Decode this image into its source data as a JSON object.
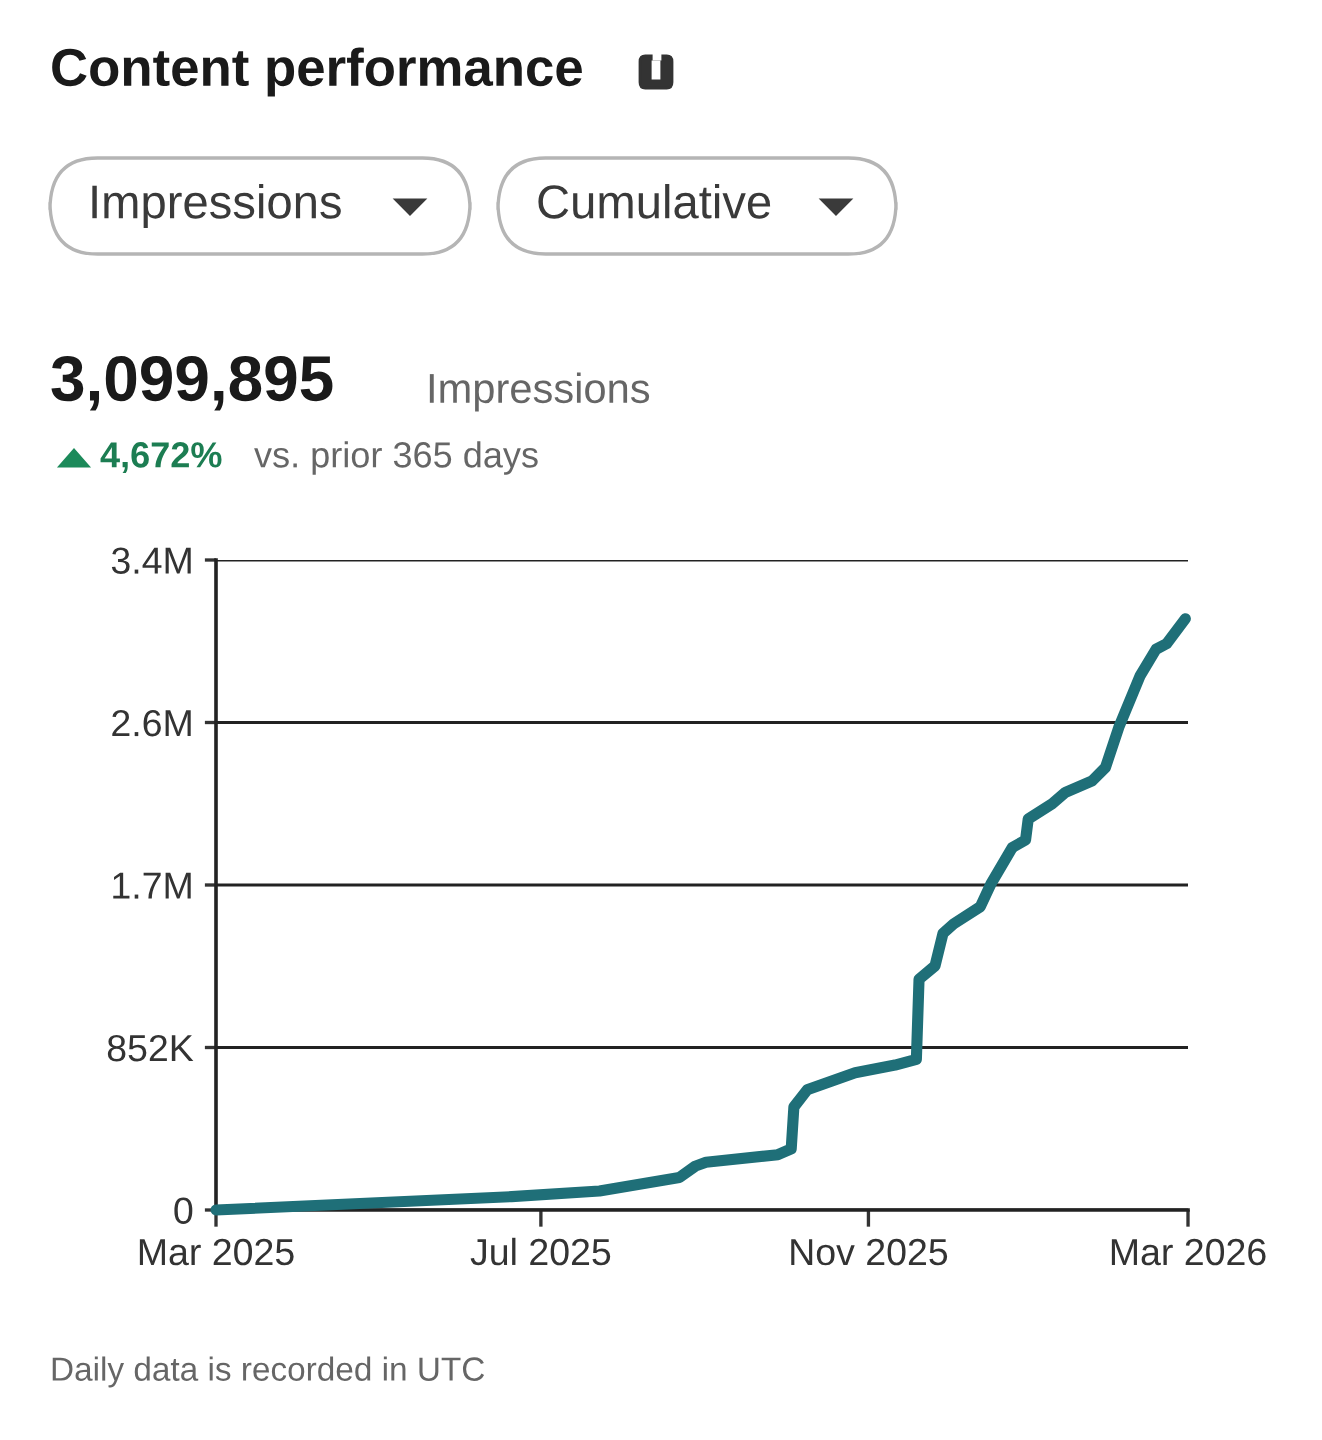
{
  "chart_data": {
    "type": "line",
    "title": "Content performance",
    "annotations": [
      "Impressions",
      "Cumulative",
      "3,099,895",
      "Impressions",
      "4,672%",
      "vs. prior 365 days",
      "Daily data is recorded in UTC"
    ],
    "x": [
      "2025-03-01",
      "2025-06-20",
      "2025-07-23",
      "2025-08-22",
      "2025-08-28",
      "2025-09-01",
      "2025-09-28",
      "2025-10-03",
      "2025-10-04",
      "2025-10-09",
      "2025-10-27",
      "2025-11-11",
      "2025-11-19",
      "2025-11-20",
      "2025-11-26",
      "2025-11-29",
      "2025-12-03",
      "2025-12-13",
      "2025-12-17",
      "2025-12-25",
      "2025-12-30",
      "2025-12-31",
      "2026-01-09",
      "2026-01-14",
      "2026-01-24",
      "2026-01-29",
      "2026-02-03",
      "2026-02-11",
      "2026-02-17",
      "2026-02-21",
      "2026-02-28"
    ],
    "series": [
      {
        "color": "#1f6f78",
        "values": [
          0,
          70000,
          100000,
          170000,
          230000,
          250000,
          290000,
          320000,
          540000,
          630000,
          720000,
          760000,
          790000,
          1210000,
          1280000,
          1450000,
          1500000,
          1590000,
          1710000,
          1900000,
          1940000,
          2050000,
          2130000,
          2190000,
          2250000,
          2320000,
          2530000,
          2800000,
          2940000,
          2970000,
          3100000
        ]
      }
    ],
    "xlim": [
      "2025-03-01",
      "2026-03-01"
    ],
    "xticks": [
      {
        "value": "2025-03-01",
        "label": "Mar 2025"
      },
      {
        "value": "2025-07-01",
        "label": "Jul 2025"
      },
      {
        "value": "2025-11-01",
        "label": "Nov 2025"
      },
      {
        "value": "2026-03-01",
        "label": "Mar 2026"
      }
    ],
    "ylim": [
      0,
      3408000
    ],
    "yticks": [
      0,
      {
        "value": 852000,
        "label": "852K"
      },
      {
        "value": 1704000,
        "label": "1.7M"
      },
      {
        "value": 2556000,
        "label": "2.6M"
      },
      {
        "value": 3408000,
        "label": "3.4M"
      }
    ],
    "grid": "y",
    "legend": false,
    "marker": "none",
    "line_style": "solid"
  }
}
